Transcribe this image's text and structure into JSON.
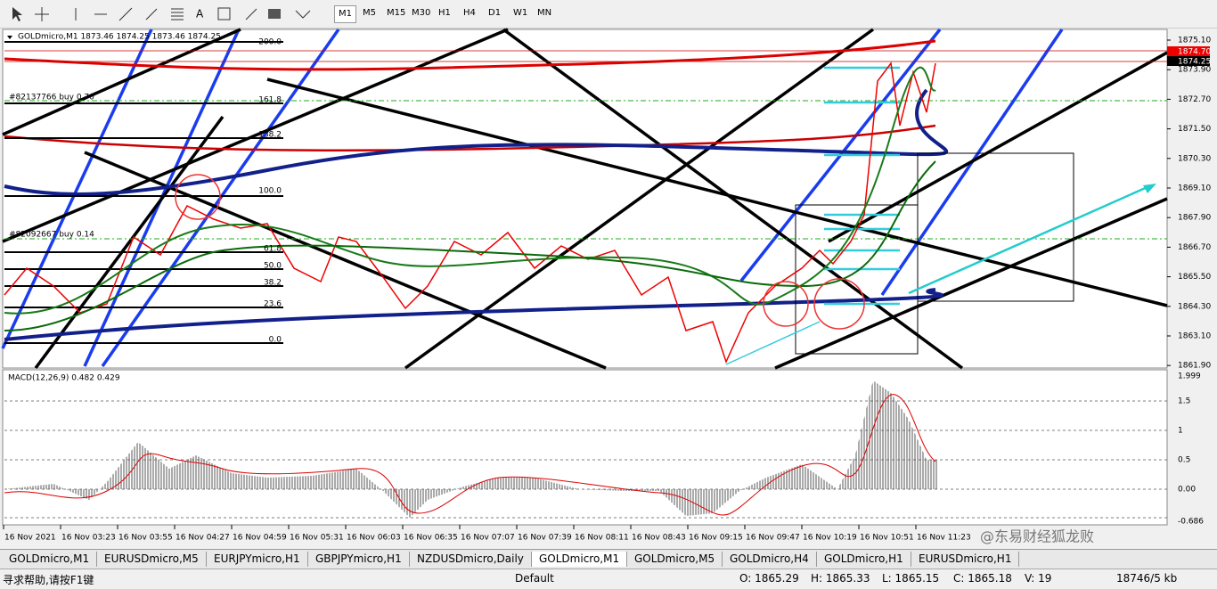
{
  "toolbar": {
    "timeframes": [
      "M1",
      "M5",
      "M15",
      "M30",
      "H1",
      "H4",
      "D1",
      "W1",
      "MN"
    ]
  },
  "chart": {
    "header": "GOLDmicro,M1  1873.46 1874.25 1873.46 1874.25",
    "orders": [
      "#82137766 buy 0.70",
      "#82092667 buy 0.14"
    ],
    "fib_levels": [
      "200.0",
      "161.8",
      "138.2",
      "100.0",
      "61.8",
      "50.0",
      "38.2",
      "23.6",
      "0.0"
    ],
    "price_axis": [
      "1875.10",
      "1873.90",
      "1872.70",
      "1871.50",
      "1870.30",
      "1869.10",
      "1867.90",
      "1866.70",
      "1865.50",
      "1864.30",
      "1863.10",
      "1861.90"
    ],
    "ask_label": "1874.70",
    "bid_label": "1874.25",
    "indicator": "MACD(12,26,9) 0.482 0.429",
    "indicator_axis": [
      "1.999",
      "1.5",
      "1",
      "0.5",
      "0.00",
      "-0.686"
    ],
    "time_axis": [
      "16 Nov 2021",
      "16 Nov 03:23",
      "16 Nov 03:55",
      "16 Nov 04:27",
      "16 Nov 04:59",
      "16 Nov 05:31",
      "16 Nov 06:03",
      "16 Nov 06:35",
      "16 Nov 07:07",
      "16 Nov 07:39",
      "16 Nov 08:11",
      "16 Nov 08:43",
      "16 Nov 09:15",
      "16 Nov 09:47",
      "16 Nov 10:19",
      "16 Nov 10:51",
      "16 Nov 11:23"
    ]
  },
  "tabs": [
    "GOLDmicro,M1",
    "EURUSDmicro,M5",
    "EURJPYmicro,H1",
    "GBPJPYmicro,H1",
    "NZDUSDmicro,Daily",
    "GOLDmicro,M1",
    "GOLDmicro,M5",
    "GOLDmicro,H4",
    "GOLDmicro,H1",
    "EURUSDmicro,H1"
  ],
  "status": {
    "help": "寻求帮助,请按F1键",
    "profile": "Default",
    "open": "O: 1865.29",
    "high": "H: 1865.33",
    "low": "L: 1865.15",
    "close": "C: 1865.18",
    "volume": "V: 19",
    "traffic": "18746/5 kb"
  },
  "watermark": "@东易财经狐龙败"
}
